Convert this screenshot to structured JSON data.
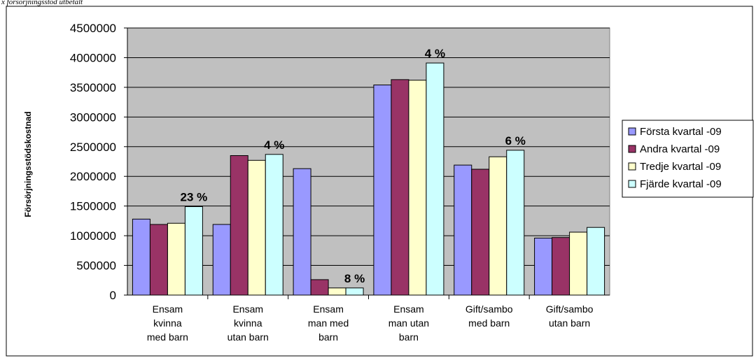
{
  "page": {
    "top_caption": "x försörjningsstöd utbetalt"
  },
  "chart_data": {
    "type": "bar",
    "title": "",
    "xlabel": "",
    "ylabel": "Försörjningsstödskostnad",
    "ylim": [
      0,
      4500000
    ],
    "ytick_step": 500000,
    "yticks": [
      "0",
      "500000",
      "1000000",
      "1500000",
      "2000000",
      "2500000",
      "3000000",
      "3500000",
      "4000000",
      "4500000"
    ],
    "grid": true,
    "legend_position": "right",
    "plot_background": "#c0c0c0",
    "categories": [
      [
        "Ensam",
        "kvinna",
        "med barn"
      ],
      [
        "Ensam",
        "kvinna",
        "utan barn"
      ],
      [
        "Ensam",
        "man med",
        "barn"
      ],
      [
        "Ensam",
        "man utan",
        "barn"
      ],
      [
        "Gift/sambo",
        "med barn"
      ],
      [
        "Gift/sambo",
        "utan barn"
      ]
    ],
    "series": [
      {
        "name": "Första kvartal -09",
        "color": "#9999ff",
        "values": [
          1280000,
          1190000,
          2130000,
          3540000,
          2190000,
          960000
        ]
      },
      {
        "name": "Andra kvartal -09",
        "color": "#993366",
        "values": [
          1190000,
          2350000,
          260000,
          3630000,
          2120000,
          970000
        ]
      },
      {
        "name": "Tredje kvartal -09",
        "color": "#ffffcc",
        "values": [
          1210000,
          2270000,
          120000,
          3620000,
          2330000,
          1060000
        ]
      },
      {
        "name": "Fjärde kvartal -09",
        "color": "#ccffff",
        "values": [
          1490000,
          2370000,
          120000,
          3910000,
          2440000,
          1140000
        ]
      }
    ],
    "annotations": [
      "23 %",
      "4 %",
      "8 %",
      "4 %",
      "6 %"
    ]
  }
}
